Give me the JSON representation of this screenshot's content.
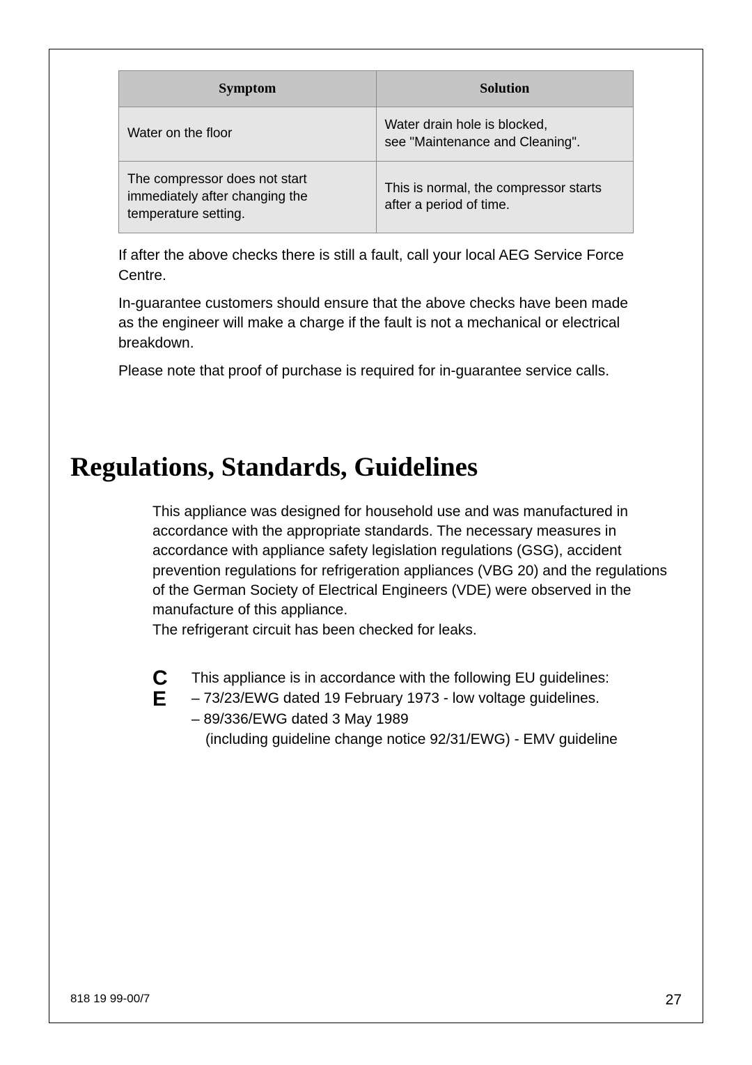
{
  "table": {
    "headers": {
      "symptom": "Symptom",
      "solution": "Solution"
    },
    "rows": [
      {
        "symptom": "Water on the floor",
        "solution": "Water drain hole is blocked,\nsee \"Maintenance and Cleaning\"."
      },
      {
        "symptom": "The compressor does not start immediately after changing the temperature setting.",
        "solution": "This is normal, the compressor starts after a period of time."
      }
    ],
    "header_bg": "#c5c5c5",
    "row_bg": "#e5e5e5",
    "border_color": "#888888",
    "header_fontsize": 20,
    "cell_fontsize": 19
  },
  "body_paragraphs": [
    "If after the above checks there is still a fault, call your local AEG Service Force Centre.",
    "In-guarantee customers should ensure that the above checks have been made as the engineer will make a charge if the fault is not a mechanical or electrical breakdown.",
    "Please note that proof of purchase is required for in-guarantee service calls."
  ],
  "section": {
    "heading": "Regulations, Standards, Guidelines",
    "heading_fontsize": 39,
    "paragraph": "This appliance was designed for household use and was manufactured in accordance with the appropriate standards. The necessary measures in accordance with appliance safety legislation regulations (GSG), accident prevention regulations for refrigeration appliances (VBG 20) and the regulations of the German Society of Electrical Engineers (VDE) were observed in the manufacture of this appliance.\nThe refrigerant circuit has been checked for leaks."
  },
  "ce": {
    "mark": "C E",
    "intro": "This appliance is in accordance with the following EU guidelines:",
    "item1": "– 73/23/EWG dated 19 February 1973 - low voltage guidelines.",
    "item2": "– 89/336/EWG dated 3 May 1989",
    "item2_sub": "(including guideline change notice 92/31/EWG) - EMV guideline"
  },
  "footer": {
    "doc_ref": "818 19 99-00/7",
    "page_num": "27"
  },
  "colors": {
    "text": "#000000",
    "background": "#ffffff",
    "frame_border": "#000000"
  },
  "body_fontsize": 21
}
